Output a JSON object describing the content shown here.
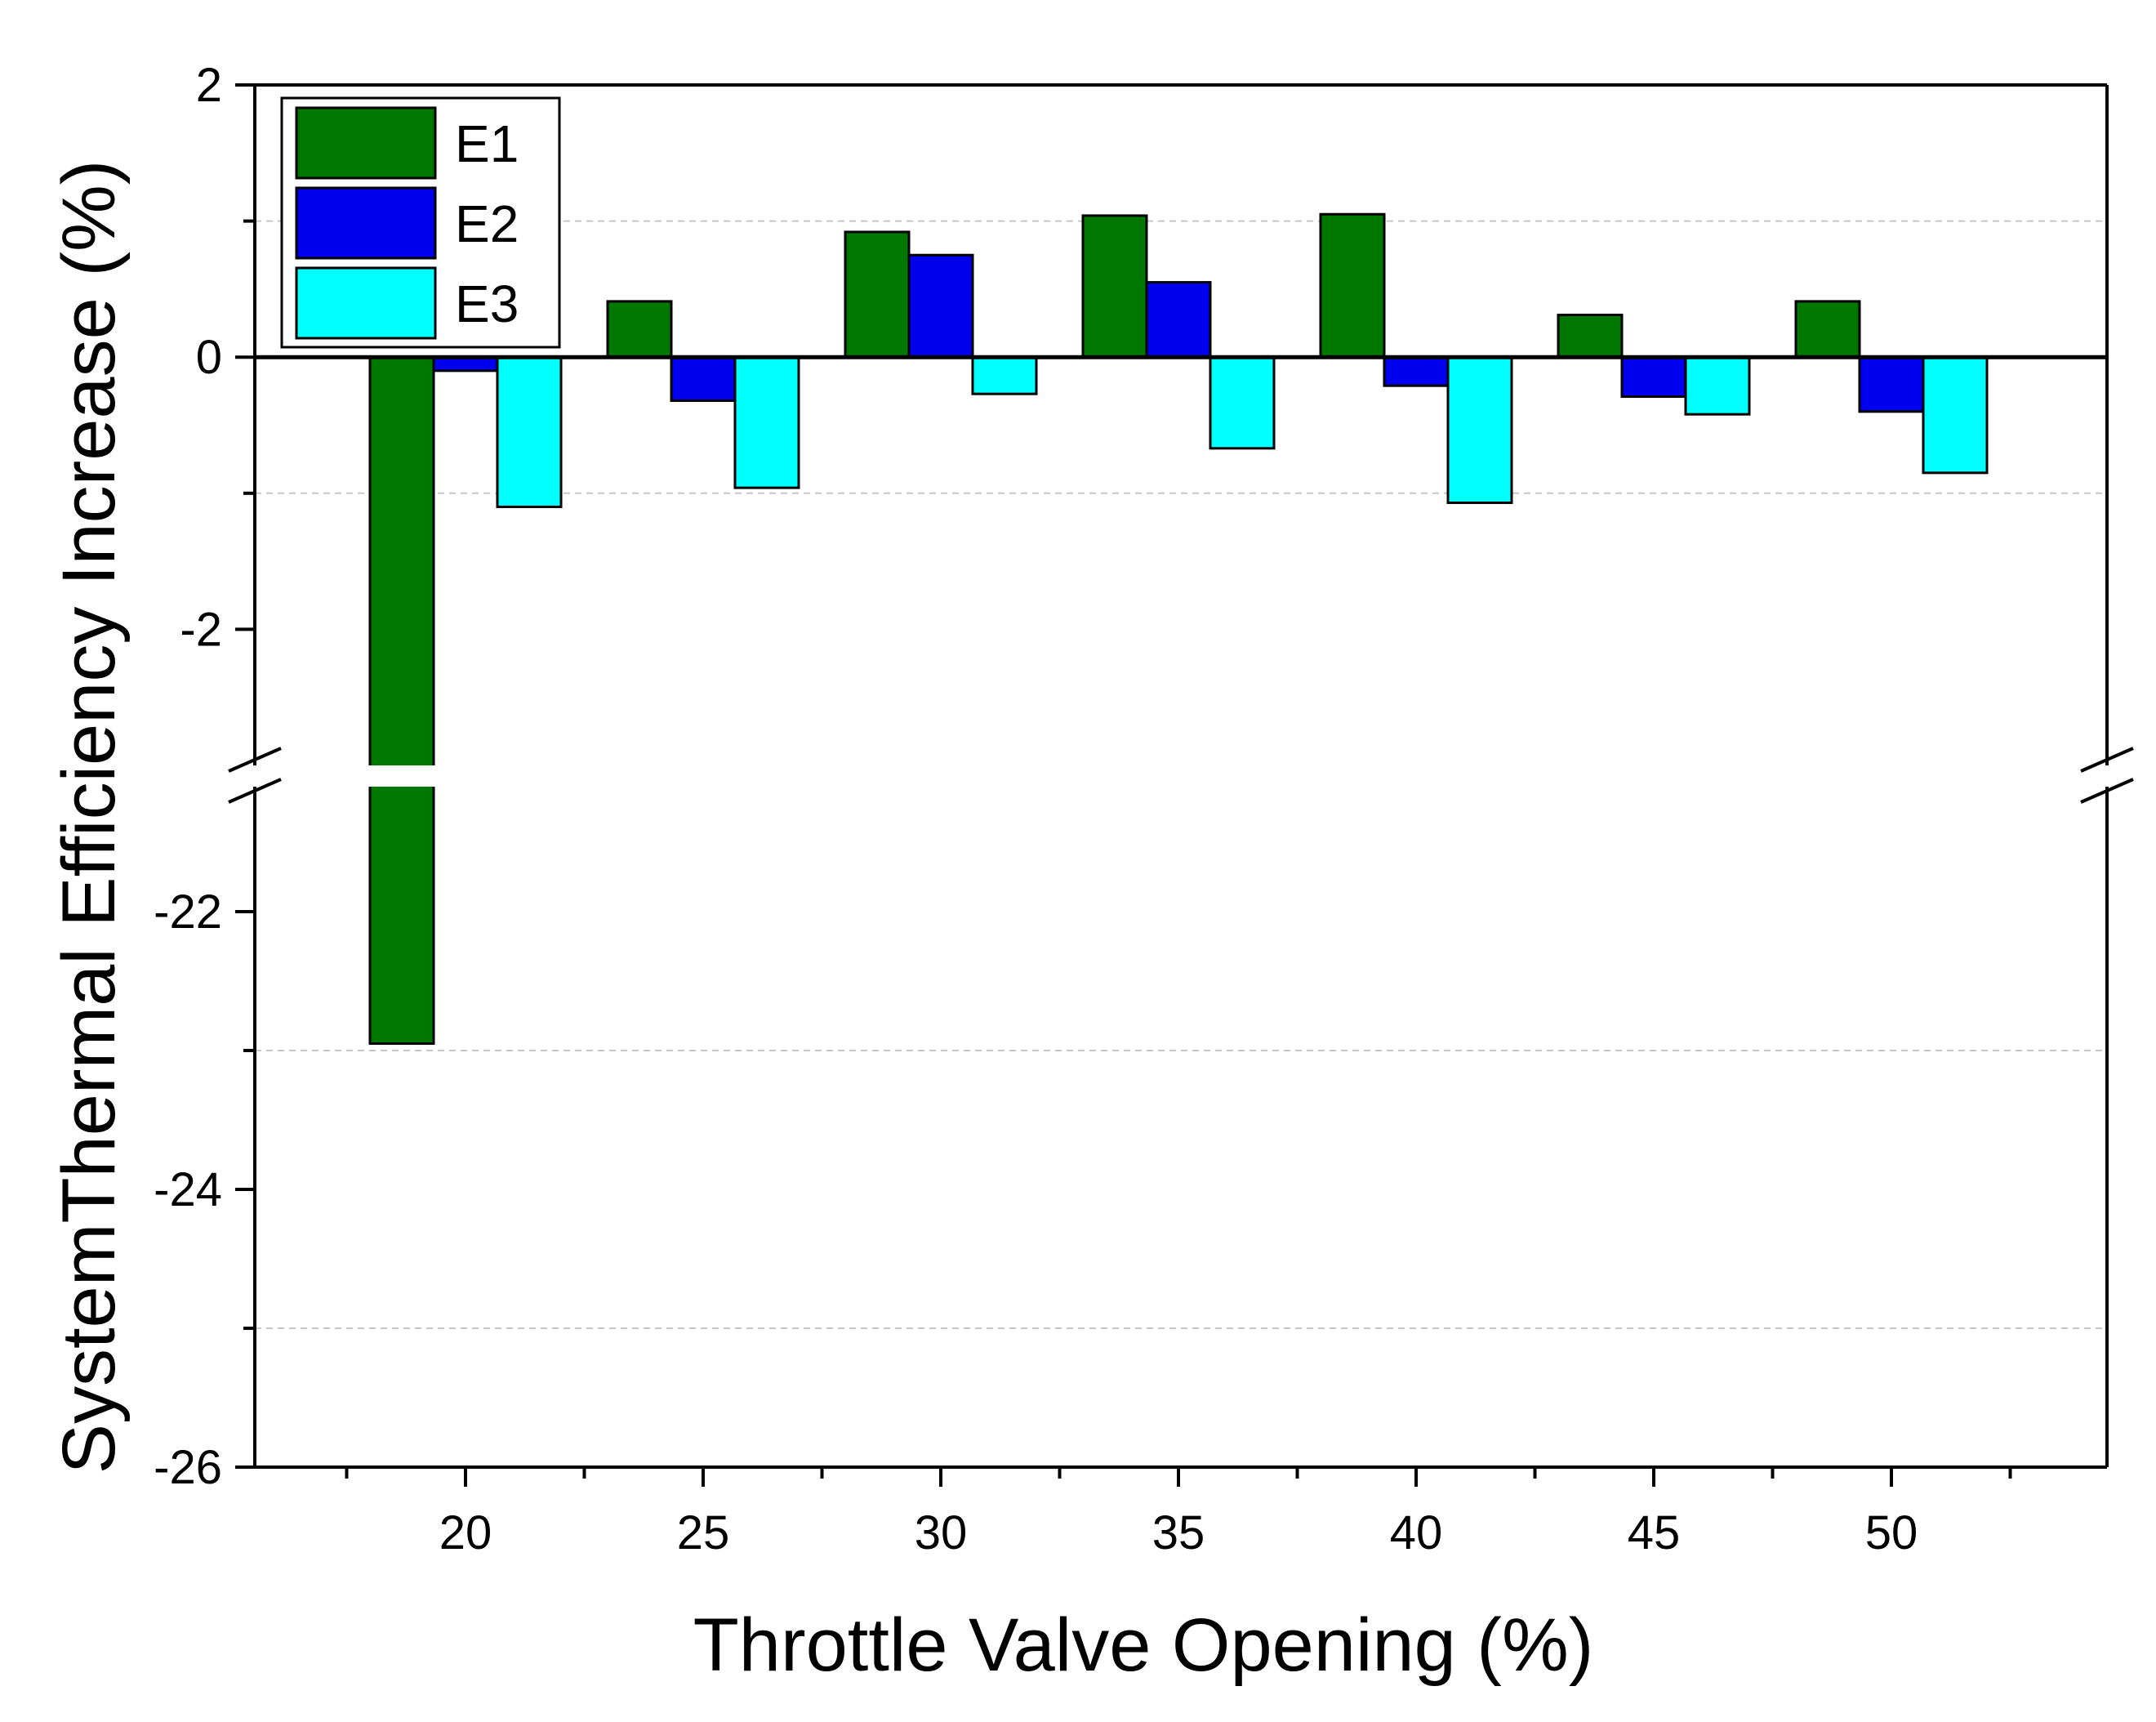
{
  "chart_data": {
    "type": "bar",
    "xlabel": "Throttle Valve Opening (%)",
    "ylabel": "SystemThermal Efficiency Increase (%)",
    "categories": [
      "20",
      "25",
      "30",
      "35",
      "40",
      "45",
      "50"
    ],
    "series": [
      {
        "name": "E1",
        "color": "#007800",
        "values": [
          -22.95,
          0.41,
          0.92,
          1.04,
          1.05,
          0.31,
          0.41
        ]
      },
      {
        "name": "E2",
        "color": "#0000ee",
        "values": [
          -0.1,
          -0.32,
          0.75,
          0.55,
          -0.21,
          -0.29,
          -0.4
        ]
      },
      {
        "name": "E3",
        "color": "#00ffff",
        "values": [
          -1.1,
          -0.96,
          -0.27,
          -0.67,
          -1.07,
          -0.42,
          -0.85
        ]
      }
    ],
    "y_axis_break": {
      "lower_range": [
        -26,
        -21.1
      ],
      "upper_range": [
        -3,
        2
      ]
    },
    "y_ticks_upper": [
      "2",
      "0",
      "-2"
    ],
    "y_ticks_lower": [
      "-22",
      "-24",
      "-26"
    ],
    "y_minor_ticks_upper": [
      1,
      -1
    ],
    "y_minor_ticks_lower": [
      -23,
      -25
    ],
    "zero_line": true,
    "grid": "dashed minor lines",
    "legend_position": "top-left"
  }
}
